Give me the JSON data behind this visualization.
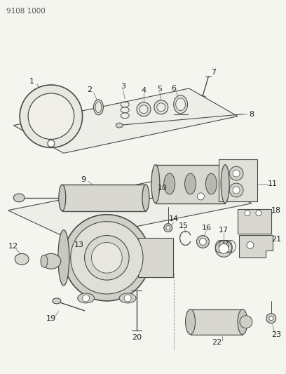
{
  "title_code": "9108 1000",
  "bg": "#f5f5f0",
  "lc": "#4a4a4a",
  "tc": "#222222",
  "fig_width": 4.08,
  "fig_height": 5.33,
  "dpi": 100
}
